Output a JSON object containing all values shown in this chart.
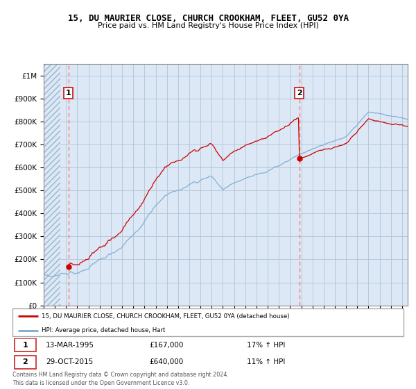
{
  "title": "15, DU MAURIER CLOSE, CHURCH CROOKHAM, FLEET, GU52 0YA",
  "subtitle": "Price paid vs. HM Land Registry's House Price Index (HPI)",
  "sale1_year": 1995.2,
  "sale1_price": 167000,
  "sale1_label": "13-MAR-1995",
  "sale1_hpi_text": "17% ↑ HPI",
  "sale2_year": 2015.83,
  "sale2_price": 640000,
  "sale2_label": "29-OCT-2015",
  "sale2_hpi_text": "11% ↑ HPI",
  "red_line_color": "#cc0000",
  "blue_line_color": "#7aaad0",
  "bg_color": "#dce8f5",
  "hatch_color": "#b8cfe0",
  "grid_color": "#b0c4d8",
  "legend_label1": "15, DU MAURIER CLOSE, CHURCH CROOKHAM, FLEET, GU52 0YA (detached house)",
  "legend_label2": "HPI: Average price, detached house, Hart",
  "footer": "Contains HM Land Registry data © Crown copyright and database right 2024.\nThis data is licensed under the Open Government Licence v3.0.",
  "ylim": [
    0,
    1050000
  ],
  "xlim_start": 1993.0,
  "xlim_end": 2025.5,
  "yticks": [
    0,
    100000,
    200000,
    300000,
    400000,
    500000,
    600000,
    700000,
    800000,
    900000,
    1000000
  ],
  "ylabels": [
    "£0",
    "£100K",
    "£200K",
    "£300K",
    "£400K",
    "£500K",
    "£600K",
    "£700K",
    "£800K",
    "£900K",
    "£1M"
  ]
}
